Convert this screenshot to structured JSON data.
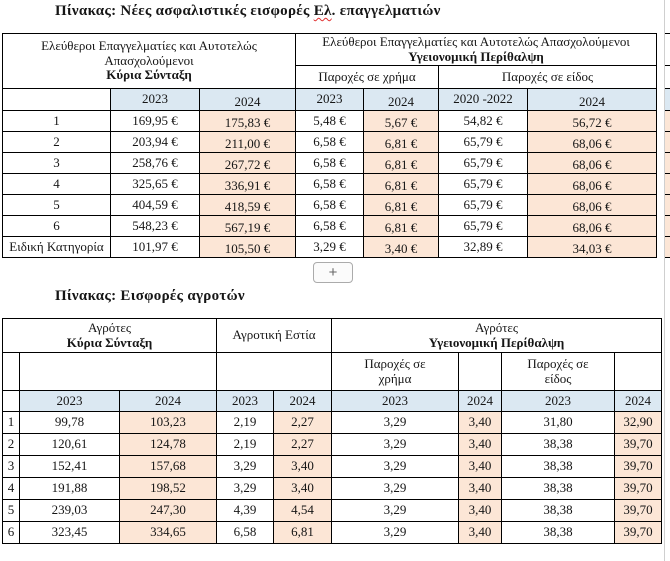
{
  "doc": {
    "title1_prefix": "Πίνακας: Νέες ασφαλιστικές εισφορές ",
    "title1_flagged": "Ελ",
    "title1_suffix": ". επαγγελματιών",
    "title2": "Πίνακας: Εισφορές αγροτών",
    "plus_button_label": "+"
  },
  "colors": {
    "year_row": "#dbe8f2",
    "col_2024": "#fce6d6",
    "border": "#000000"
  },
  "table1": {
    "header_left_line1": "Ελεύθεροι Επαγγελματίες και Αυτοτελώς Απασχολούμενοι",
    "header_left_line2": "Κύρια Σύνταξη",
    "header_right_line1": "Ελεύθεροι Επαγγελματίες και Αυτοτελώς Απασχολούμενοι",
    "header_right_line2": "Υγειονομική Περίθαλψη",
    "sub_header_money": "Παροχές σε χρήμα",
    "sub_header_kind": "Παροχές σε είδος",
    "year_row": [
      "",
      "2023",
      "2024",
      "2023",
      "2024",
      "2020 -2022",
      "2024"
    ],
    "rows": [
      [
        "1",
        "169,95 €",
        "175,83 €",
        "5,48 €",
        "5,67 €",
        "54,82 €",
        "56,72 €"
      ],
      [
        "2",
        "203,94 €",
        "211,00 €",
        "6,58 €",
        "6,81 €",
        "65,79 €",
        "68,06 €"
      ],
      [
        "3",
        "258,76 €",
        "267,72 €",
        "6,58 €",
        "6,81 €",
        "65,79 €",
        "68,06 €"
      ],
      [
        "4",
        "325,65 €",
        "336,91 €",
        "6,58 €",
        "6,81 €",
        "65,79 €",
        "68,06 €"
      ],
      [
        "5",
        "404,59 €",
        "418,59 €",
        "6,58 €",
        "6,81 €",
        "65,79 €",
        "68,06 €"
      ],
      [
        "6",
        "548,23 €",
        "567,19 €",
        "6,58 €",
        "6,81 €",
        "65,79 €",
        "68,06 €"
      ],
      [
        "Ειδική Κατηγορία",
        "101,97 €",
        "105,50 €",
        "3,29 €",
        "3,40 €",
        "32,89 €",
        "34,03 €"
      ]
    ]
  },
  "table2": {
    "header_agrotes_1": "Αγρότες",
    "header_kyria": "Κύρια Σύνταξη",
    "header_estia": "Αγροτική Εστία",
    "header_agrotes_2": "Αγρότες",
    "header_ygeia": "Υγειονομική Περίθαλψη",
    "sub_header_money": "Παροχές σε χρήμα",
    "sub_header_kind": "Παροχές σε είδος",
    "year_row": [
      "",
      "2023",
      "2024",
      "2023",
      "2024",
      "2023",
      "2024",
      "2023",
      "2024"
    ],
    "rows": [
      [
        "1",
        "99,78",
        "103,23",
        "2,19",
        "2,27",
        "3,29",
        "3,40",
        "31,80",
        "32,90"
      ],
      [
        "2",
        "120,61",
        "124,78",
        "2,19",
        "2,27",
        "3,29",
        "3,40",
        "38,38",
        "39,70"
      ],
      [
        "3",
        "152,41",
        "157,68",
        "3,29",
        "3,40",
        "3,29",
        "3,40",
        "38,38",
        "39,70"
      ],
      [
        "4",
        "191,88",
        "198,52",
        "3,29",
        "3,40",
        "3,29",
        "3,40",
        "38,38",
        "39,70"
      ],
      [
        "5",
        "239,03",
        "247,30",
        "4,39",
        "4,54",
        "3,29",
        "3,40",
        "38,38",
        "39,70"
      ],
      [
        "6",
        "323,45",
        "334,65",
        "6,58",
        "6,81",
        "3,29",
        "3,40",
        "38,38",
        "39,70"
      ]
    ]
  }
}
